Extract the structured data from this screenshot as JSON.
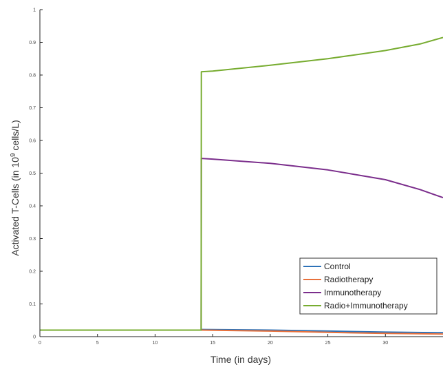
{
  "chart_data": {
    "type": "line",
    "title": "",
    "xlabel": "Time (in days)",
    "ylabel_prefix": "Activated T-Cells (in 10",
    "ylabel_sup": "9",
    "ylabel_suffix": " cells/L)",
    "xlim": [
      0,
      35
    ],
    "ylim": [
      0,
      1
    ],
    "x_ticks": [
      0,
      5,
      10,
      15,
      20,
      25,
      30
    ],
    "x_tick_labels": [
      "0",
      "5",
      "10",
      "15",
      "20",
      "25",
      "30"
    ],
    "y_ticks": [
      0,
      0.1,
      0.2,
      0.3,
      0.4,
      0.5,
      0.6,
      0.7,
      0.8,
      0.9,
      1
    ],
    "y_tick_labels": [
      "0",
      "0.1",
      "0.2",
      "0.3",
      "0.4",
      "0.5",
      "0.6",
      "0.7",
      "0.8",
      "0.9",
      "1"
    ],
    "grid": false,
    "legend_position": "bottom-right",
    "series": [
      {
        "name": "Control",
        "color": "#2d72b8",
        "x": [
          0,
          14,
          14.1,
          20,
          25,
          30,
          35
        ],
        "y": [
          0.02,
          0.02,
          0.022,
          0.02,
          0.017,
          0.014,
          0.012
        ]
      },
      {
        "name": "Radiotherapy",
        "color": "#e8713c",
        "x": [
          0,
          14,
          14.1,
          20,
          25,
          30,
          35
        ],
        "y": [
          0.02,
          0.02,
          0.02,
          0.017,
          0.013,
          0.01,
          0.008
        ]
      },
      {
        "name": "Immunotherapy",
        "color": "#7b2e8c",
        "x": [
          0,
          14,
          14.02,
          15,
          20,
          25,
          30,
          33,
          35
        ],
        "y": [
          0.02,
          0.02,
          0.545,
          0.543,
          0.53,
          0.51,
          0.48,
          0.45,
          0.425
        ]
      },
      {
        "name": "Radio+Immunotherapy",
        "color": "#77ac30",
        "x": [
          0,
          14,
          14.02,
          15,
          20,
          25,
          30,
          33,
          35
        ],
        "y": [
          0.02,
          0.02,
          0.81,
          0.812,
          0.83,
          0.85,
          0.875,
          0.895,
          0.915
        ]
      }
    ]
  }
}
